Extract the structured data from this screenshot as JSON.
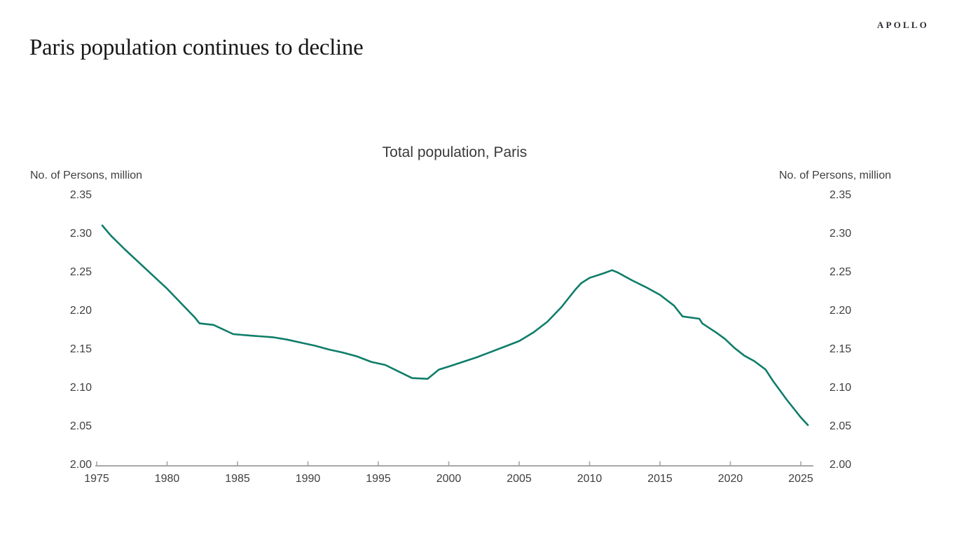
{
  "header": {
    "title": "Paris population continues to decline",
    "logo": "APOLLO"
  },
  "colors": {
    "line": "#0f7d6a",
    "axis": "#a7a7a7",
    "tick_text": "#3f3f3f",
    "title_text": "#181818",
    "chart_title_text": "#3a3a3a"
  },
  "chart_data": {
    "type": "line",
    "title": "Total population, Paris",
    "ylabel_left": "No. of Persons, million",
    "ylabel_right": "No. of Persons, million",
    "xlabel": "",
    "xlim": [
      1975,
      2025
    ],
    "ylim": [
      2.0,
      2.35
    ],
    "grid": "off",
    "legend": "none",
    "x_ticks": [
      "1975",
      "1980",
      "1985",
      "1990",
      "1995",
      "2000",
      "2005",
      "2010",
      "2015",
      "2020",
      "2025"
    ],
    "x_tick_years": [
      1975,
      1980,
      1985,
      1990,
      1995,
      2000,
      2005,
      2010,
      2015,
      2020,
      2025
    ],
    "y_ticks": [
      "2.35",
      "2.30",
      "2.25",
      "2.20",
      "2.15",
      "2.10",
      "2.05",
      "2.00"
    ],
    "y_tick_values": [
      2.35,
      2.3,
      2.25,
      2.2,
      2.15,
      2.1,
      2.05,
      2.0
    ],
    "series": [
      {
        "name": "Total population, Paris",
        "points": [
          [
            1975.4,
            2.311
          ],
          [
            1976,
            2.298
          ],
          [
            1977,
            2.28
          ],
          [
            1978,
            2.263
          ],
          [
            1979,
            2.246
          ],
          [
            1980,
            2.229
          ],
          [
            1981,
            2.21
          ],
          [
            1982,
            2.191
          ],
          [
            1982.3,
            2.184
          ],
          [
            1983.3,
            2.182
          ],
          [
            1984.7,
            2.17
          ],
          [
            1986,
            2.168
          ],
          [
            1987.5,
            2.166
          ],
          [
            1988.5,
            2.163
          ],
          [
            1989.5,
            2.159
          ],
          [
            1990.5,
            2.155
          ],
          [
            1991.5,
            2.15
          ],
          [
            1992.5,
            2.146
          ],
          [
            1993.5,
            2.141
          ],
          [
            1994.5,
            2.134
          ],
          [
            1995.5,
            2.13
          ],
          [
            1996.5,
            2.121
          ],
          [
            1997.4,
            2.113
          ],
          [
            1998.5,
            2.112
          ],
          [
            1999.3,
            2.124
          ],
          [
            2000,
            2.128
          ],
          [
            2001,
            2.134
          ],
          [
            2002,
            2.14
          ],
          [
            2003,
            2.147
          ],
          [
            2004,
            2.154
          ],
          [
            2005,
            2.161
          ],
          [
            2006,
            2.172
          ],
          [
            2007,
            2.186
          ],
          [
            2008,
            2.205
          ],
          [
            2009,
            2.228
          ],
          [
            2009.4,
            2.236
          ],
          [
            2010,
            2.243
          ],
          [
            2011,
            2.249
          ],
          [
            2011.6,
            2.253
          ],
          [
            2012,
            2.25
          ],
          [
            2013,
            2.24
          ],
          [
            2014,
            2.231
          ],
          [
            2015,
            2.221
          ],
          [
            2016,
            2.207
          ],
          [
            2016.6,
            2.193
          ],
          [
            2017.8,
            2.19
          ],
          [
            2018,
            2.184
          ],
          [
            2019,
            2.172
          ],
          [
            2019.6,
            2.164
          ],
          [
            2020.3,
            2.152
          ],
          [
            2021,
            2.142
          ],
          [
            2021.7,
            2.135
          ],
          [
            2022.5,
            2.124
          ],
          [
            2023,
            2.11
          ],
          [
            2024,
            2.085
          ],
          [
            2025,
            2.062
          ],
          [
            2025.5,
            2.052
          ]
        ]
      }
    ]
  }
}
